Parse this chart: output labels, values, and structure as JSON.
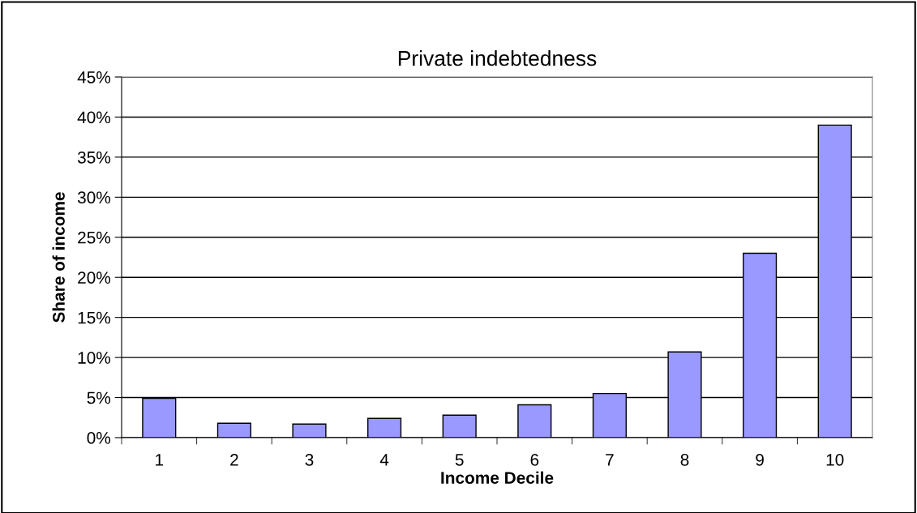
{
  "chart_data": {
    "type": "bar",
    "title": "Private indebtedness",
    "xlabel": "Income Decile",
    "ylabel": "Share of income",
    "categories": [
      "1",
      "2",
      "3",
      "4",
      "5",
      "6",
      "7",
      "8",
      "9",
      "10"
    ],
    "values": [
      4.9,
      1.8,
      1.7,
      2.4,
      2.8,
      4.1,
      5.5,
      10.7,
      23.0,
      39.0
    ],
    "color": "#9999ff",
    "ylim": [
      0,
      45
    ],
    "yticks": [
      {
        "value": 0,
        "label": "0%"
      },
      {
        "value": 5,
        "label": "5%"
      },
      {
        "value": 10,
        "label": "10%"
      },
      {
        "value": 15,
        "label": "15%"
      },
      {
        "value": 20,
        "label": "20%"
      },
      {
        "value": 25,
        "label": "25%"
      },
      {
        "value": 30,
        "label": "30%"
      },
      {
        "value": 35,
        "label": "35%"
      },
      {
        "value": 40,
        "label": "40%"
      },
      {
        "value": 45,
        "label": "45%"
      }
    ],
    "grid": "y",
    "legend": false
  }
}
